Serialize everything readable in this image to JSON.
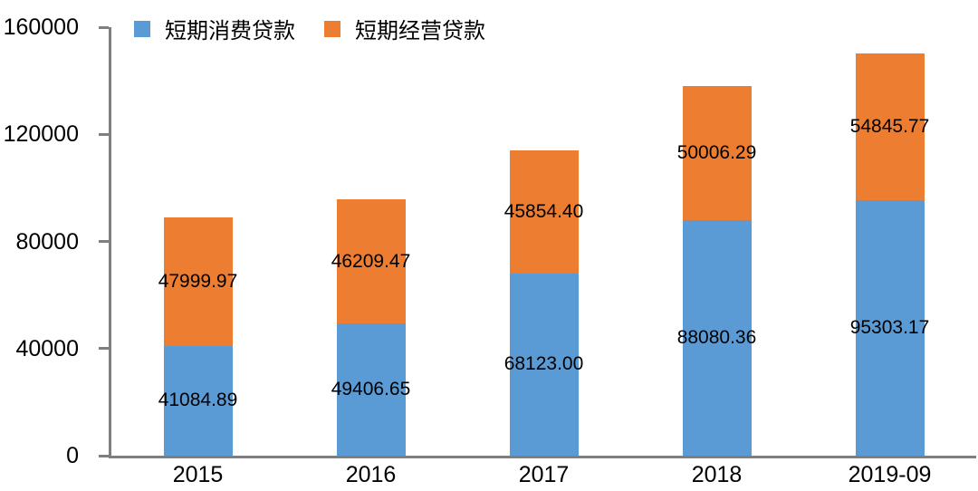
{
  "chart_data": {
    "type": "bar",
    "stacked": true,
    "title": "",
    "xlabel": "",
    "ylabel": "",
    "categories": [
      "2015",
      "2016",
      "2017",
      "2018",
      "2019-09"
    ],
    "series": [
      {
        "name": "短期消费贷款",
        "color": "#5B9BD5",
        "values": [
          41084.89,
          49406.65,
          68123.0,
          88080.36,
          95303.17
        ]
      },
      {
        "name": "短期经营贷款",
        "color": "#ED7D31",
        "values": [
          47999.97,
          46209.47,
          45854.4,
          50006.29,
          54845.77
        ]
      }
    ],
    "ylim": [
      0,
      160000
    ],
    "yticks": [
      0,
      40000,
      80000,
      120000,
      160000
    ],
    "grid": false,
    "legend_position": "top",
    "data_labels": true,
    "data_label_decimals": 2,
    "axis_color": "#7F7F7F",
    "text_color": "#000000",
    "background_color": "#FFFFFF"
  }
}
